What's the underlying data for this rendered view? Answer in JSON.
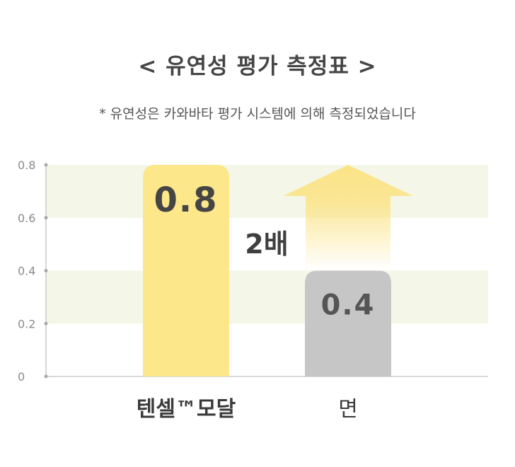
{
  "title": "< 유연성 평가 측정표 >",
  "subtitle": "* 유연성은 카와바타 평가 시스템에 의해 측정되었습니다",
  "chart_data": {
    "type": "bar",
    "categories": [
      "텐셀™모달",
      "면"
    ],
    "values": [
      0.8,
      0.4
    ],
    "value_labels": [
      "0.8",
      "0.4"
    ],
    "ylim": [
      0,
      0.8
    ],
    "yticks": [
      "0",
      "0.2",
      "0.4",
      "0.6",
      "0.8"
    ],
    "xlabel": "",
    "ylabel": "",
    "annotation": "2배",
    "colors": {
      "bar_primary": "#fce88a",
      "bar_secondary": "#c6c6c6",
      "band": "#f4f7e8",
      "arrow": "#fbe386",
      "axis": "#cccccc"
    }
  }
}
